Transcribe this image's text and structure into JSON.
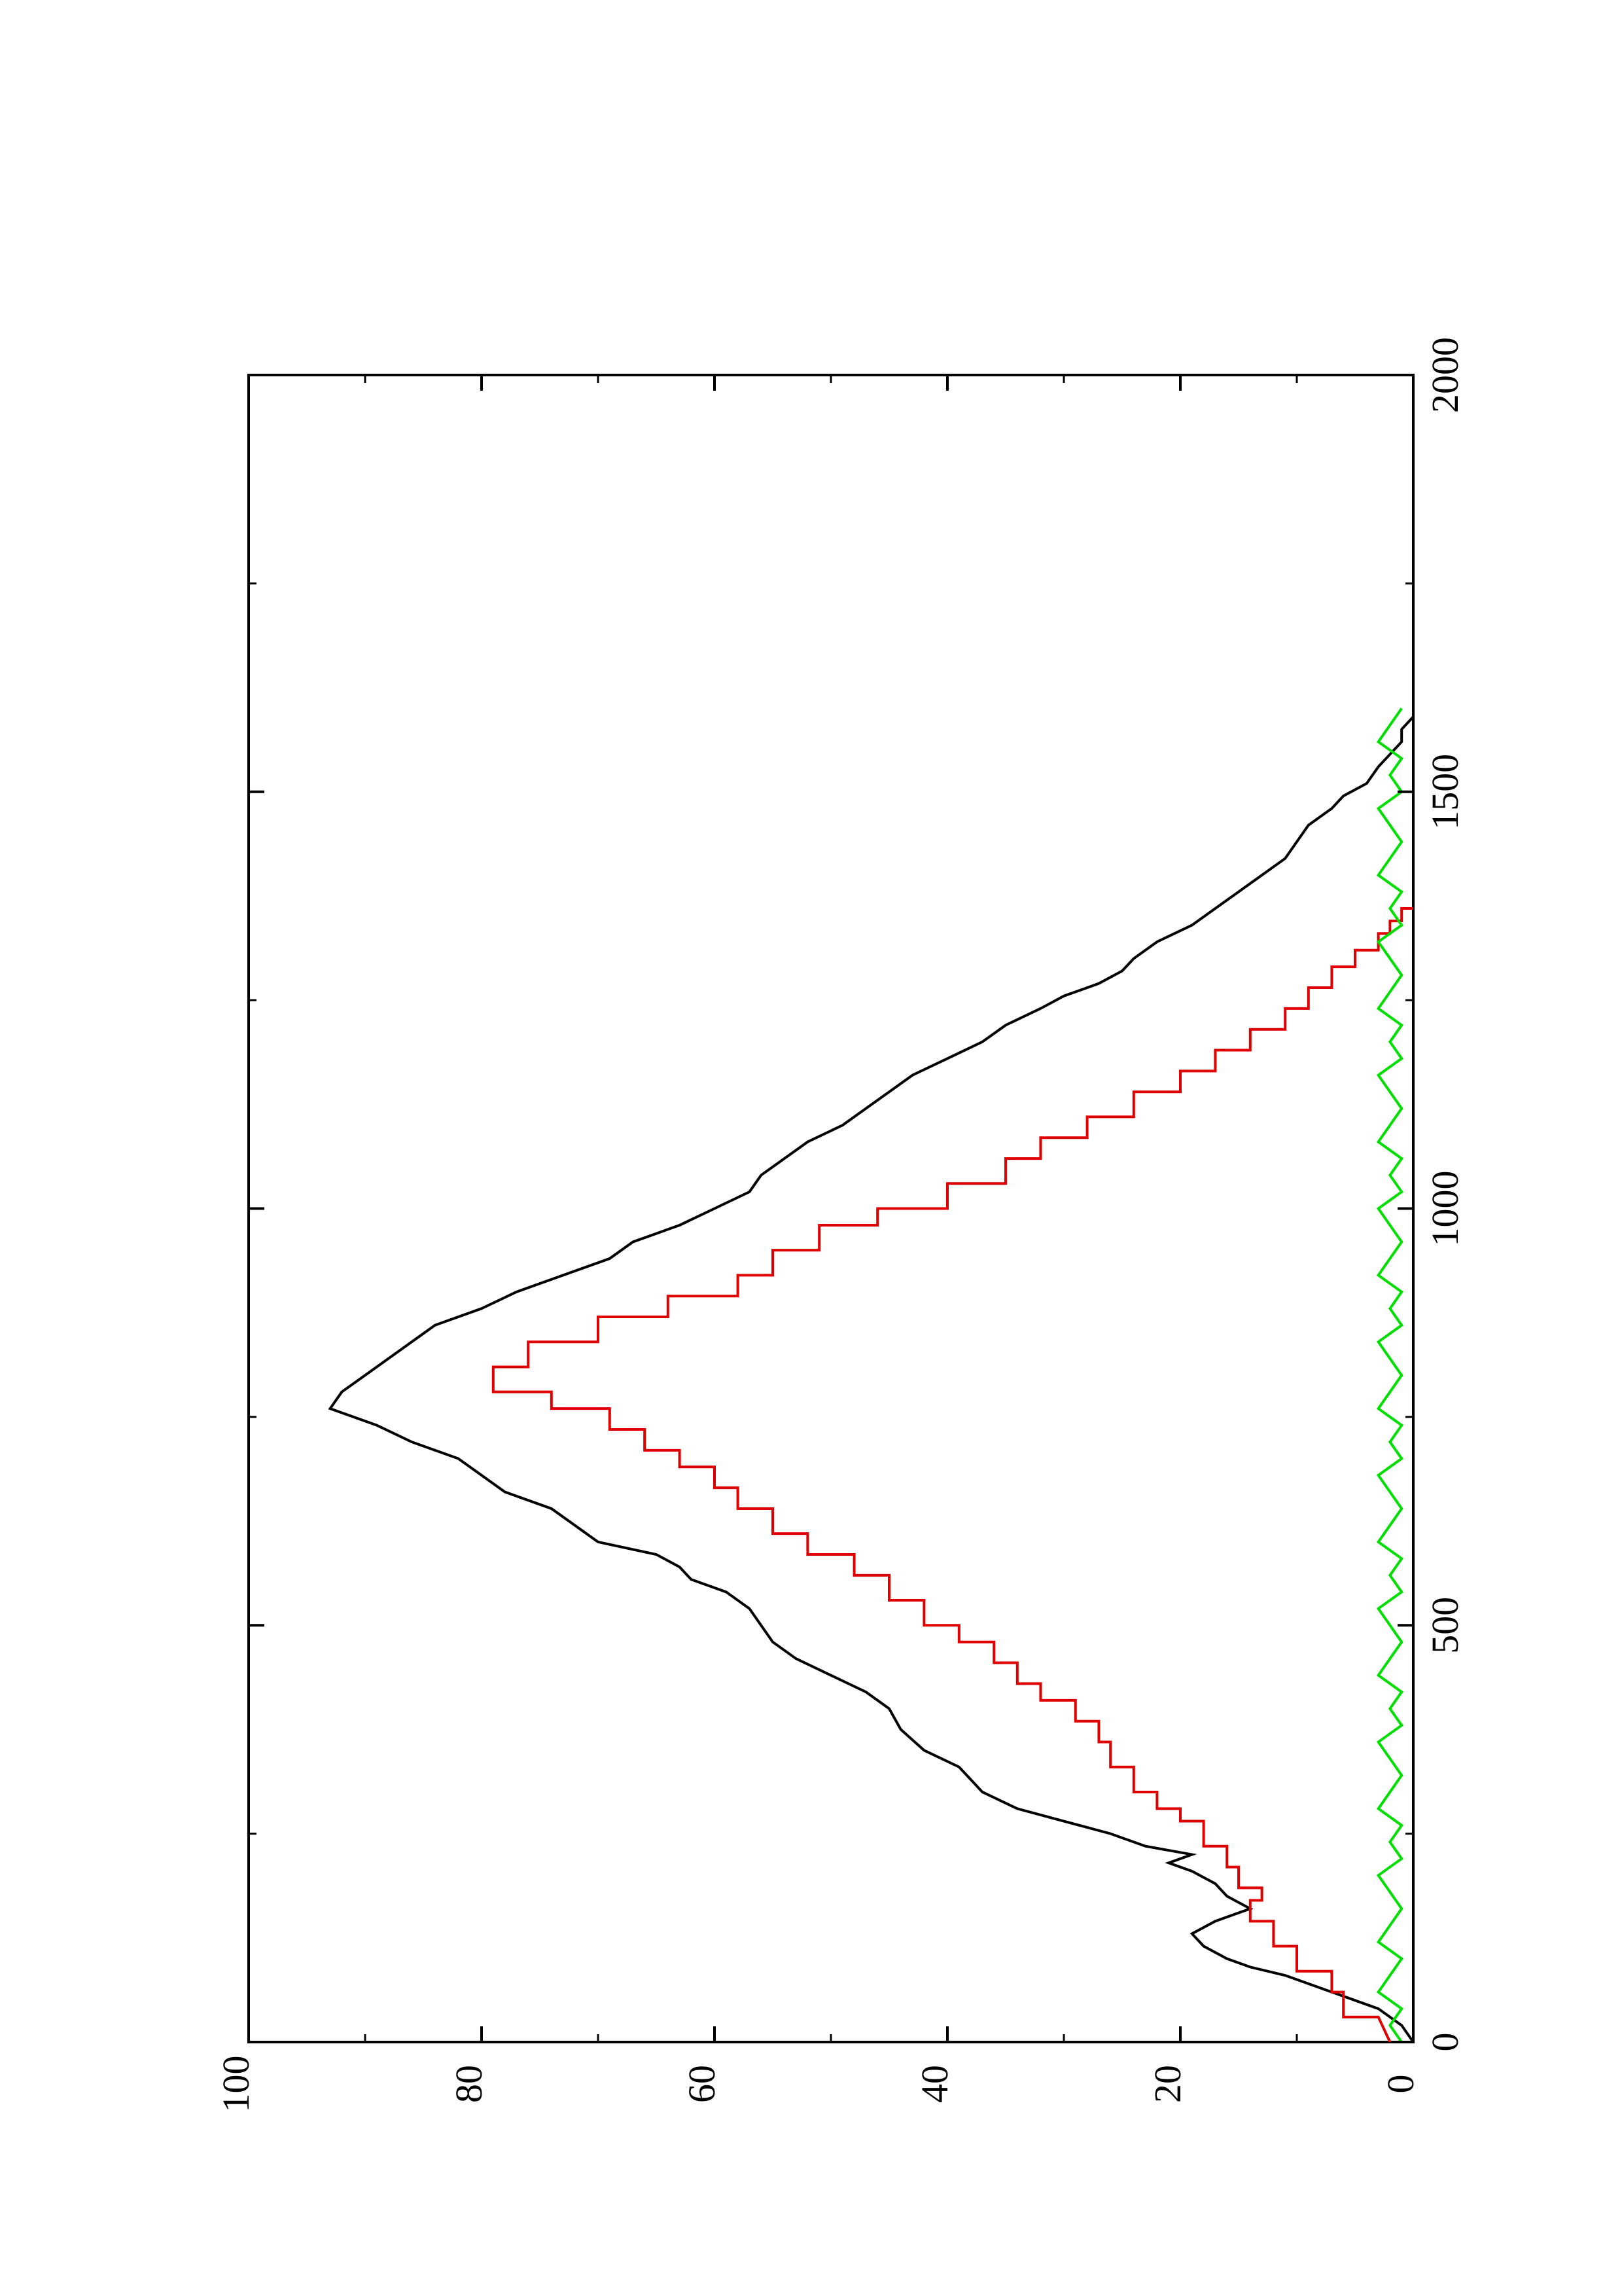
{
  "chart_data": {
    "type": "line",
    "orientation": "rotated-90-ccw",
    "title": "",
    "xlabel": "",
    "ylabel": "",
    "xlim": [
      0,
      2000
    ],
    "ylim": [
      0,
      100
    ],
    "x_ticks": [
      0,
      500,
      1000,
      1500,
      2000
    ],
    "y_ticks": [
      0,
      20,
      40,
      60,
      80,
      100
    ],
    "x_tick_labels": [
      "0",
      "500",
      "1000",
      "1500",
      "2000"
    ],
    "y_tick_labels": [
      "0",
      "20",
      "40",
      "60",
      "80",
      "100"
    ],
    "grid": false,
    "legend": "none",
    "series": [
      {
        "color": "#000000",
        "points": [
          [
            0,
            0
          ],
          [
            20,
            1
          ],
          [
            40,
            3
          ],
          [
            60,
            7
          ],
          [
            80,
            11
          ],
          [
            90,
            14
          ],
          [
            100,
            16
          ],
          [
            115,
            18
          ],
          [
            130,
            19
          ],
          [
            145,
            17
          ],
          [
            160,
            14
          ],
          [
            175,
            16
          ],
          [
            190,
            17
          ],
          [
            205,
            19
          ],
          [
            215,
            21
          ],
          [
            225,
            19
          ],
          [
            235,
            23
          ],
          [
            250,
            26
          ],
          [
            265,
            30
          ],
          [
            280,
            34
          ],
          [
            300,
            37
          ],
          [
            330,
            39
          ],
          [
            350,
            42
          ],
          [
            375,
            44
          ],
          [
            400,
            45
          ],
          [
            420,
            47
          ],
          [
            440,
            50
          ],
          [
            460,
            53
          ],
          [
            480,
            55
          ],
          [
            500,
            56
          ],
          [
            520,
            57
          ],
          [
            540,
            59
          ],
          [
            555,
            62
          ],
          [
            570,
            63
          ],
          [
            585,
            65
          ],
          [
            600,
            70
          ],
          [
            620,
            72
          ],
          [
            640,
            74
          ],
          [
            660,
            78
          ],
          [
            680,
            80
          ],
          [
            700,
            82
          ],
          [
            720,
            86
          ],
          [
            740,
            89
          ],
          [
            760,
            93
          ],
          [
            780,
            92
          ],
          [
            800,
            90
          ],
          [
            820,
            88
          ],
          [
            840,
            86
          ],
          [
            860,
            84
          ],
          [
            880,
            80
          ],
          [
            900,
            77
          ],
          [
            920,
            73
          ],
          [
            940,
            69
          ],
          [
            960,
            67
          ],
          [
            980,
            63
          ],
          [
            1000,
            60
          ],
          [
            1020,
            57
          ],
          [
            1040,
            56
          ],
          [
            1060,
            54
          ],
          [
            1080,
            52
          ],
          [
            1100,
            49
          ],
          [
            1120,
            47
          ],
          [
            1140,
            45
          ],
          [
            1160,
            43
          ],
          [
            1180,
            40
          ],
          [
            1200,
            37
          ],
          [
            1220,
            35
          ],
          [
            1240,
            32
          ],
          [
            1255,
            30
          ],
          [
            1270,
            27
          ],
          [
            1285,
            25
          ],
          [
            1300,
            24
          ],
          [
            1320,
            22
          ],
          [
            1340,
            19
          ],
          [
            1360,
            17
          ],
          [
            1380,
            15
          ],
          [
            1400,
            13
          ],
          [
            1420,
            11
          ],
          [
            1440,
            10
          ],
          [
            1460,
            9
          ],
          [
            1470,
            8
          ],
          [
            1480,
            7
          ],
          [
            1495,
            6
          ],
          [
            1510,
            4
          ],
          [
            1530,
            3
          ],
          [
            1545,
            2
          ],
          [
            1560,
            1
          ],
          [
            1575,
            1
          ],
          [
            1590,
            0
          ]
        ]
      },
      {
        "color": "#e00000",
        "points": [
          [
            0,
            2
          ],
          [
            30,
            3
          ],
          [
            30,
            6
          ],
          [
            60,
            6
          ],
          [
            60,
            7
          ],
          [
            85,
            7
          ],
          [
            85,
            10
          ],
          [
            115,
            10
          ],
          [
            115,
            12
          ],
          [
            145,
            12
          ],
          [
            145,
            14
          ],
          [
            170,
            14
          ],
          [
            170,
            13
          ],
          [
            185,
            13
          ],
          [
            185,
            15
          ],
          [
            210,
            15
          ],
          [
            210,
            16
          ],
          [
            235,
            16
          ],
          [
            235,
            18
          ],
          [
            265,
            18
          ],
          [
            265,
            20
          ],
          [
            280,
            20
          ],
          [
            280,
            22
          ],
          [
            300,
            22
          ],
          [
            300,
            24
          ],
          [
            330,
            24
          ],
          [
            330,
            26
          ],
          [
            360,
            26
          ],
          [
            360,
            27
          ],
          [
            385,
            27
          ],
          [
            385,
            29
          ],
          [
            410,
            29
          ],
          [
            410,
            32
          ],
          [
            430,
            32
          ],
          [
            430,
            34
          ],
          [
            455,
            34
          ],
          [
            455,
            36
          ],
          [
            480,
            36
          ],
          [
            480,
            39
          ],
          [
            500,
            39
          ],
          [
            500,
            42
          ],
          [
            530,
            42
          ],
          [
            530,
            45
          ],
          [
            560,
            45
          ],
          [
            560,
            48
          ],
          [
            585,
            48
          ],
          [
            585,
            52
          ],
          [
            610,
            52
          ],
          [
            610,
            55
          ],
          [
            640,
            55
          ],
          [
            640,
            58
          ],
          [
            665,
            58
          ],
          [
            665,
            60
          ],
          [
            690,
            60
          ],
          [
            690,
            63
          ],
          [
            710,
            63
          ],
          [
            710,
            66
          ],
          [
            735,
            66
          ],
          [
            735,
            69
          ],
          [
            760,
            69
          ],
          [
            760,
            74
          ],
          [
            780,
            74
          ],
          [
            780,
            79
          ],
          [
            810,
            79
          ],
          [
            810,
            76
          ],
          [
            840,
            76
          ],
          [
            840,
            70
          ],
          [
            870,
            70
          ],
          [
            870,
            64
          ],
          [
            895,
            64
          ],
          [
            895,
            58
          ],
          [
            920,
            58
          ],
          [
            920,
            55
          ],
          [
            950,
            55
          ],
          [
            950,
            51
          ],
          [
            980,
            51
          ],
          [
            980,
            46
          ],
          [
            1000,
            46
          ],
          [
            1000,
            40
          ],
          [
            1030,
            40
          ],
          [
            1030,
            35
          ],
          [
            1060,
            35
          ],
          [
            1060,
            32
          ],
          [
            1085,
            32
          ],
          [
            1085,
            28
          ],
          [
            1110,
            28
          ],
          [
            1110,
            24
          ],
          [
            1140,
            24
          ],
          [
            1140,
            20
          ],
          [
            1165,
            20
          ],
          [
            1165,
            17
          ],
          [
            1190,
            17
          ],
          [
            1190,
            14
          ],
          [
            1215,
            14
          ],
          [
            1215,
            11
          ],
          [
            1240,
            11
          ],
          [
            1240,
            9
          ],
          [
            1265,
            9
          ],
          [
            1265,
            7
          ],
          [
            1290,
            7
          ],
          [
            1290,
            5
          ],
          [
            1310,
            5
          ],
          [
            1310,
            3
          ],
          [
            1330,
            3
          ],
          [
            1330,
            2
          ],
          [
            1345,
            2
          ],
          [
            1345,
            1
          ],
          [
            1360,
            1
          ],
          [
            1360,
            0
          ]
        ]
      },
      {
        "color": "#00e000",
        "points": [
          [
            0,
            1
          ],
          [
            20,
            2
          ],
          [
            40,
            1
          ],
          [
            60,
            3
          ],
          [
            80,
            2
          ],
          [
            100,
            1
          ],
          [
            120,
            3
          ],
          [
            140,
            2
          ],
          [
            160,
            1
          ],
          [
            180,
            2
          ],
          [
            200,
            3
          ],
          [
            220,
            1
          ],
          [
            240,
            2
          ],
          [
            260,
            1
          ],
          [
            280,
            3
          ],
          [
            300,
            2
          ],
          [
            320,
            1
          ],
          [
            340,
            2
          ],
          [
            360,
            3
          ],
          [
            380,
            1
          ],
          [
            400,
            2
          ],
          [
            420,
            1
          ],
          [
            440,
            3
          ],
          [
            460,
            2
          ],
          [
            480,
            1
          ],
          [
            500,
            2
          ],
          [
            520,
            3
          ],
          [
            540,
            1
          ],
          [
            560,
            2
          ],
          [
            580,
            1
          ],
          [
            600,
            3
          ],
          [
            620,
            2
          ],
          [
            640,
            1
          ],
          [
            660,
            2
          ],
          [
            680,
            3
          ],
          [
            700,
            1
          ],
          [
            720,
            2
          ],
          [
            740,
            1
          ],
          [
            760,
            3
          ],
          [
            780,
            2
          ],
          [
            800,
            1
          ],
          [
            820,
            2
          ],
          [
            840,
            3
          ],
          [
            860,
            1
          ],
          [
            880,
            2
          ],
          [
            900,
            1
          ],
          [
            920,
            3
          ],
          [
            940,
            2
          ],
          [
            960,
            1
          ],
          [
            980,
            2
          ],
          [
            1000,
            3
          ],
          [
            1020,
            1
          ],
          [
            1040,
            2
          ],
          [
            1060,
            1
          ],
          [
            1080,
            3
          ],
          [
            1100,
            2
          ],
          [
            1120,
            1
          ],
          [
            1140,
            2
          ],
          [
            1160,
            3
          ],
          [
            1180,
            1
          ],
          [
            1200,
            2
          ],
          [
            1220,
            1
          ],
          [
            1240,
            3
          ],
          [
            1260,
            2
          ],
          [
            1280,
            1
          ],
          [
            1300,
            2
          ],
          [
            1320,
            3
          ],
          [
            1340,
            1
          ],
          [
            1360,
            2
          ],
          [
            1380,
            1
          ],
          [
            1400,
            3
          ],
          [
            1420,
            2
          ],
          [
            1440,
            1
          ],
          [
            1460,
            2
          ],
          [
            1480,
            3
          ],
          [
            1500,
            1
          ],
          [
            1520,
            2
          ],
          [
            1540,
            1
          ],
          [
            1560,
            3
          ],
          [
            1580,
            2
          ],
          [
            1600,
            1
          ]
        ]
      }
    ]
  }
}
